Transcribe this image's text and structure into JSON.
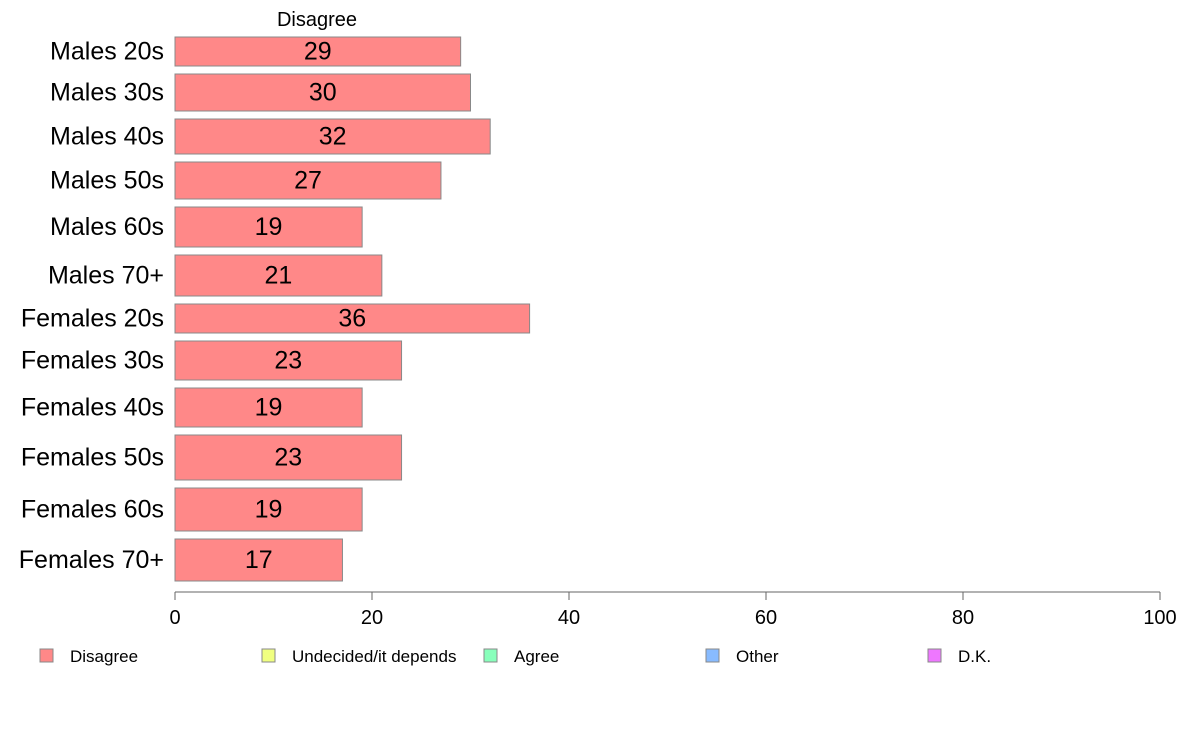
{
  "chart_data": {
    "type": "bar",
    "orientation": "horizontal",
    "series_title": "Disagree",
    "categories": [
      "Males 20s",
      "Males 30s",
      "Males 40s",
      "Males 50s",
      "Males 60s",
      "Males 70+",
      "Females 20s",
      "Females 30s",
      "Females 40s",
      "Females 50s",
      "Females 60s",
      "Females 70+"
    ],
    "series": [
      {
        "name": "Disagree",
        "color": "#ff8888",
        "values": [
          29,
          30,
          32,
          27,
          19,
          21,
          36,
          23,
          19,
          23,
          19,
          17
        ]
      }
    ],
    "value_labels": [
      "29",
      "30",
      "32",
      "27",
      "19",
      "21",
      "36",
      "23",
      "19",
      "23",
      "19",
      "17"
    ],
    "xlim": [
      0,
      100
    ],
    "xticks": [
      0,
      20,
      40,
      60,
      80,
      100
    ],
    "xtick_labels": [
      "0",
      "20",
      "40",
      "60",
      "80",
      "100"
    ],
    "grid": false,
    "legend_position": "bottom",
    "legend": [
      {
        "label": "Disagree",
        "color": "#ff8888"
      },
      {
        "label": "Undecided/it depends",
        "color": "#f0ff80"
      },
      {
        "label": "Agree",
        "color": "#88ffbb"
      },
      {
        "label": "Other",
        "color": "#88bbff"
      },
      {
        "label": "D.K.",
        "color": "#ee77ff"
      }
    ]
  }
}
